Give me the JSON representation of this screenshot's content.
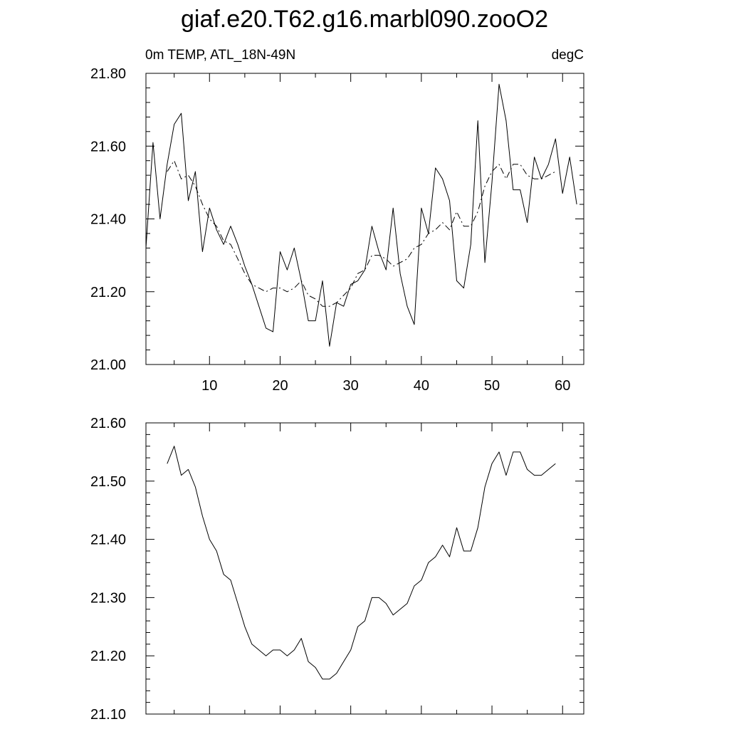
{
  "title": "giaf.e20.T62.g16.marbl090.zooO2",
  "chart_data": [
    {
      "type": "line",
      "subtitle_left": "0m TEMP, ATL_18N-49N",
      "subtitle_right": "degC",
      "xlim": [
        1,
        63
      ],
      "ylim": [
        21.0,
        21.8
      ],
      "xticks": [
        10,
        20,
        30,
        40,
        50,
        60
      ],
      "xtick_labels": [
        "10",
        "20",
        "30",
        "40",
        "50",
        "60"
      ],
      "yticks": [
        21.0,
        21.2,
        21.4,
        21.6,
        21.8
      ],
      "ytick_labels": [
        "21.00",
        "21.20",
        "21.40",
        "21.60",
        "21.80"
      ],
      "series": [
        {
          "style": "solid",
          "x": [
            1,
            2,
            3,
            4,
            5,
            6,
            7,
            8,
            9,
            10,
            11,
            12,
            13,
            14,
            15,
            16,
            17,
            18,
            19,
            20,
            21,
            22,
            23,
            24,
            25,
            26,
            27,
            28,
            29,
            30,
            31,
            32,
            33,
            34,
            35,
            36,
            37,
            38,
            39,
            40,
            41,
            42,
            43,
            44,
            45,
            46,
            47,
            48,
            49,
            50,
            51,
            52,
            53,
            54,
            55,
            56,
            57,
            58,
            59,
            60,
            61,
            62
          ],
          "values": [
            21.32,
            21.61,
            21.4,
            21.55,
            21.66,
            21.69,
            21.45,
            21.53,
            21.31,
            21.43,
            21.37,
            21.33,
            21.38,
            21.33,
            21.27,
            21.22,
            21.16,
            21.1,
            21.09,
            21.31,
            21.26,
            21.32,
            21.23,
            21.12,
            21.12,
            21.23,
            21.05,
            21.17,
            21.16,
            21.22,
            21.23,
            21.26,
            21.38,
            21.31,
            21.26,
            21.43,
            21.25,
            21.16,
            21.11,
            21.43,
            21.36,
            21.54,
            21.51,
            21.45,
            21.23,
            21.21,
            21.33,
            21.67,
            21.28,
            21.5,
            21.77,
            21.67,
            21.48,
            21.48,
            21.39,
            21.57,
            21.51,
            21.55,
            21.62,
            21.47,
            21.57,
            21.44
          ]
        },
        {
          "style": "dash-dot",
          "x": [
            4,
            5,
            6,
            7,
            8,
            9,
            10,
            11,
            12,
            13,
            14,
            15,
            16,
            17,
            18,
            19,
            20,
            21,
            22,
            23,
            24,
            25,
            26,
            27,
            28,
            29,
            30,
            31,
            32,
            33,
            34,
            35,
            36,
            37,
            38,
            39,
            40,
            41,
            42,
            43,
            44,
            45,
            46,
            47,
            48,
            49,
            50,
            51,
            52,
            53,
            54,
            55,
            56,
            57,
            58,
            59
          ],
          "values": [
            21.53,
            21.56,
            21.51,
            21.52,
            21.49,
            21.44,
            21.4,
            21.38,
            21.34,
            21.33,
            21.29,
            21.25,
            21.22,
            21.21,
            21.2,
            21.21,
            21.21,
            21.2,
            21.21,
            21.23,
            21.19,
            21.18,
            21.16,
            21.16,
            21.17,
            21.19,
            21.21,
            21.25,
            21.26,
            21.3,
            21.3,
            21.29,
            21.27,
            21.28,
            21.29,
            21.32,
            21.33,
            21.36,
            21.37,
            21.39,
            21.37,
            21.42,
            21.38,
            21.38,
            21.42,
            21.49,
            21.53,
            21.55,
            21.51,
            21.55,
            21.55,
            21.52,
            21.51,
            21.51,
            21.52,
            21.53
          ]
        }
      ]
    },
    {
      "type": "line",
      "xlim": [
        1,
        63
      ],
      "ylim": [
        21.1,
        21.6
      ],
      "xticks": [
        10,
        20,
        30,
        40,
        50,
        60
      ],
      "yticks": [
        21.1,
        21.2,
        21.3,
        21.4,
        21.5,
        21.6
      ],
      "ytick_labels": [
        "21.10",
        "21.20",
        "21.30",
        "21.40",
        "21.50",
        "21.60"
      ],
      "series": [
        {
          "style": "solid",
          "x": [
            4,
            5,
            6,
            7,
            8,
            9,
            10,
            11,
            12,
            13,
            14,
            15,
            16,
            17,
            18,
            19,
            20,
            21,
            22,
            23,
            24,
            25,
            26,
            27,
            28,
            29,
            30,
            31,
            32,
            33,
            34,
            35,
            36,
            37,
            38,
            39,
            40,
            41,
            42,
            43,
            44,
            45,
            46,
            47,
            48,
            49,
            50,
            51,
            52,
            53,
            54,
            55,
            56,
            57,
            58,
            59
          ],
          "values": [
            21.53,
            21.56,
            21.51,
            21.52,
            21.49,
            21.44,
            21.4,
            21.38,
            21.34,
            21.33,
            21.29,
            21.25,
            21.22,
            21.21,
            21.2,
            21.21,
            21.21,
            21.2,
            21.21,
            21.23,
            21.19,
            21.18,
            21.16,
            21.16,
            21.17,
            21.19,
            21.21,
            21.25,
            21.26,
            21.3,
            21.3,
            21.29,
            21.27,
            21.28,
            21.29,
            21.32,
            21.33,
            21.36,
            21.37,
            21.39,
            21.37,
            21.42,
            21.38,
            21.38,
            21.42,
            21.49,
            21.53,
            21.55,
            21.51,
            21.55,
            21.55,
            21.52,
            21.51,
            21.51,
            21.52,
            21.53
          ]
        }
      ]
    }
  ]
}
